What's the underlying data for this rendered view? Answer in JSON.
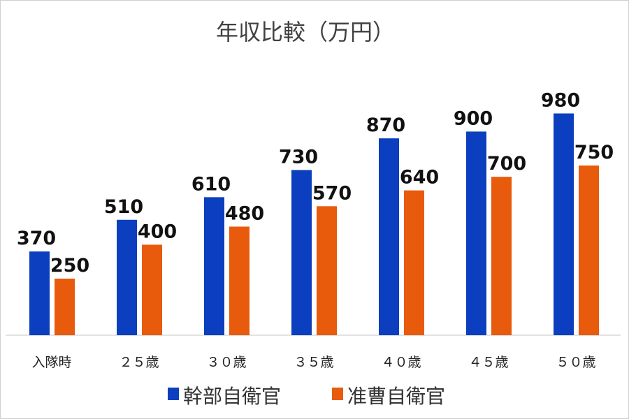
{
  "chart_data": {
    "type": "bar",
    "title": "年収比較（万円）",
    "categories": [
      "入隊時",
      "２５歳",
      "３０歳",
      "３５歳",
      "４０歳",
      "４５歳",
      "５０歳"
    ],
    "series": [
      {
        "name": "幹部自衛官",
        "color": "#0b3fbf",
        "values": [
          370,
          510,
          610,
          730,
          870,
          900,
          980
        ]
      },
      {
        "name": "准曹自衛官",
        "color": "#e85a0c",
        "values": [
          250,
          400,
          480,
          570,
          640,
          700,
          750
        ]
      }
    ],
    "ylim": [
      0,
      1000
    ],
    "grid": false,
    "data_labels": true,
    "legend": "bottom"
  }
}
